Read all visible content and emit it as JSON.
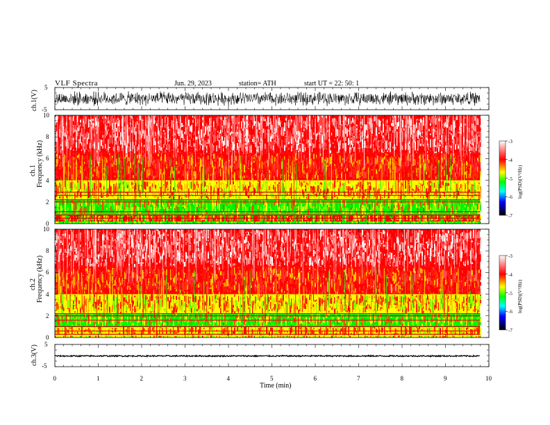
{
  "header": {
    "title": "VLF  Spectra",
    "date": "Jun. 29, 2023",
    "station": "station= ATH",
    "start_ut": "start  UT  =    22: 50: 1"
  },
  "panels": {
    "ch1_wave": {
      "ylabel": "ch.1(V)",
      "yticks": [
        "5",
        "-5"
      ]
    },
    "ch1_spec": {
      "ylabel_ch": "ch.1",
      "ylabel": "Frequency  (kHz)"
    },
    "ch2_spec": {
      "ylabel_ch": "ch.2",
      "ylabel": "Frequency  (kHz)"
    },
    "ch3_wave": {
      "ylabel": "ch.3(V)",
      "yticks": [
        "5",
        "-5"
      ]
    }
  },
  "colorbar": {
    "label": "log(PSD)(V²/Hz)",
    "ticks": [
      "-3",
      "-4",
      "-5",
      "-6",
      "-7"
    ],
    "colors": [
      "#ffffff",
      "#ff0000",
      "#ffff00",
      "#00ff00",
      "#00ffff",
      "#0000ff",
      "#000000"
    ]
  },
  "chart_data": [
    {
      "type": "line",
      "name": "ch.1 waveform",
      "ylabel": "ch.1(V)",
      "xlim": [
        0,
        10
      ],
      "ylim": [
        -5,
        5
      ],
      "signal_extent_min": [
        0,
        9.8
      ],
      "amplitude_envelope_v": [
        -3.5,
        3.5
      ]
    },
    {
      "type": "heatmap",
      "name": "ch.1 spectrogram",
      "ylabel": "Frequency  (kHz)",
      "xlabel": "Time  (min)",
      "xlim": [
        0,
        10
      ],
      "ylim": [
        0,
        10
      ],
      "yticks": [
        0,
        2,
        4,
        6,
        8,
        10
      ],
      "signal_extent_min": [
        0,
        9.8
      ],
      "color_scale": [
        -7,
        -3
      ],
      "bands_khz": [
        {
          "range": [
            0,
            0.2
          ],
          "level": "green"
        },
        {
          "range": [
            0.2,
            0.8
          ],
          "level": "red-yellow"
        },
        {
          "range": [
            0.8,
            2.2
          ],
          "level": "green-yellow"
        },
        {
          "range": [
            2.2,
            4.0
          ],
          "level": "yellow-red"
        },
        {
          "range": [
            4.0,
            6.5
          ],
          "level": "red"
        },
        {
          "range": [
            6.5,
            10.0
          ],
          "level": "red-white"
        }
      ],
      "lines_khz": [
        0.5,
        0.8,
        1.1,
        2.0,
        2.2,
        2.6,
        2.9
      ]
    },
    {
      "type": "heatmap",
      "name": "ch.2 spectrogram",
      "ylabel": "Frequency  (kHz)",
      "xlabel": "Time  (min)",
      "xlim": [
        0,
        10
      ],
      "ylim": [
        0,
        10
      ],
      "yticks": [
        0,
        2,
        4,
        6,
        8,
        10
      ],
      "signal_extent_min": [
        0,
        9.8
      ],
      "color_scale": [
        -7,
        -3
      ],
      "bands_khz": [
        {
          "range": [
            0,
            0.2
          ],
          "level": "yellow"
        },
        {
          "range": [
            0.2,
            1.0
          ],
          "level": "yellow-red"
        },
        {
          "range": [
            1.0,
            2.2
          ],
          "level": "green-yellow"
        },
        {
          "range": [
            2.2,
            4.0
          ],
          "level": "yellow-red"
        },
        {
          "range": [
            4.0,
            6.5
          ],
          "level": "red"
        },
        {
          "range": [
            6.5,
            10.0
          ],
          "level": "red-white"
        }
      ],
      "lines_khz": [
        0.3,
        0.6,
        1.0,
        1.6,
        2.0,
        2.2
      ]
    },
    {
      "type": "line",
      "name": "ch.3 waveform",
      "ylabel": "ch.3(V)",
      "xlim": [
        0,
        10
      ],
      "ylim": [
        -5,
        5
      ],
      "signal_extent_min": [
        0,
        9.8
      ],
      "level_v": -0.2,
      "amplitude_envelope_v": [
        -0.6,
        0.3
      ]
    },
    {
      "type": "axis",
      "xlabel": "Time  (min)",
      "xticks": [
        0,
        1,
        2,
        3,
        4,
        5,
        6,
        7,
        8,
        9,
        10
      ]
    }
  ]
}
